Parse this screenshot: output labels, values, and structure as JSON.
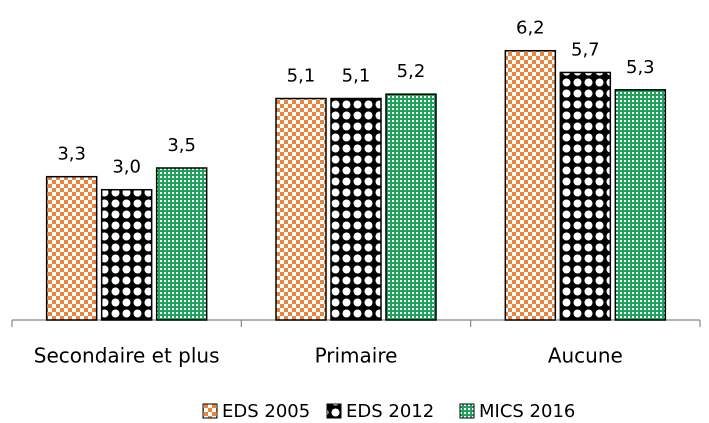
{
  "chart_data": {
    "type": "bar",
    "categories": [
      "Secondaire et plus",
      "Primaire",
      "Aucune"
    ],
    "series": [
      {
        "name": "EDS 2005",
        "color": "#e8843c",
        "values": [
          3.3,
          5.1,
          6.2
        ],
        "value_labels": [
          "3,3",
          "5,1",
          "6,2"
        ]
      },
      {
        "name": "EDS 2012",
        "color": "#000000",
        "values": [
          3.0,
          5.1,
          5.7
        ],
        "value_labels": [
          "3,0",
          "5,1",
          "5,7"
        ]
      },
      {
        "name": "MICS 2016",
        "color": "#1fa35c",
        "values": [
          3.5,
          5.2,
          5.3
        ],
        "value_labels": [
          "3,5",
          "5,2",
          "5,3"
        ]
      }
    ],
    "ylim": [
      0,
      7
    ],
    "legend": "bottom"
  }
}
